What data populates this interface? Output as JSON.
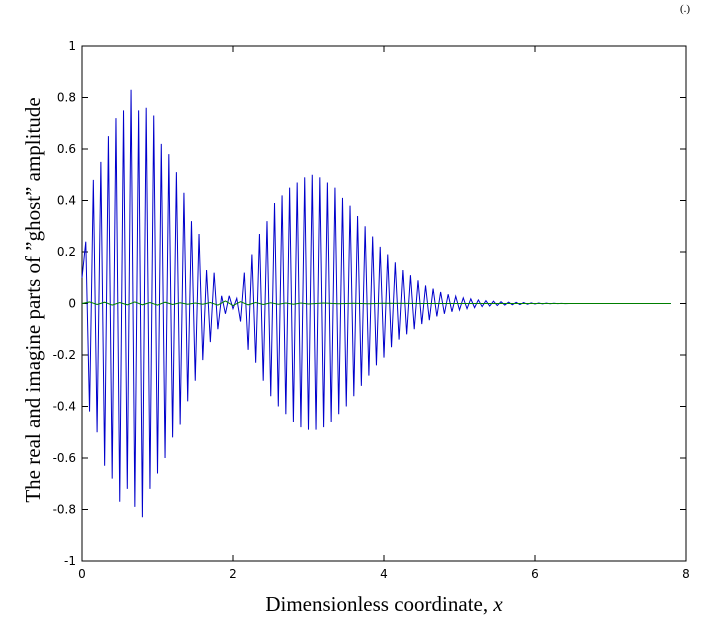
{
  "corner_mark": "(.)",
  "chart_data": {
    "type": "line",
    "title": "",
    "xlabel": "Dimensionless coordinate,",
    "xlabel_var": "x",
    "ylabel": "The real and imagine parts of ”ghost” amplitude",
    "xlim": [
      0,
      8
    ],
    "ylim": [
      -1,
      1
    ],
    "xticks": [
      "0",
      "2",
      "4",
      "6",
      "8"
    ],
    "yticks": [
      "-1",
      "-0.8",
      "-0.6",
      "-0.4",
      "-0.2",
      "0",
      "0.2",
      "0.4",
      "0.6",
      "0.8",
      "1"
    ],
    "grid": false,
    "colors": {
      "real": "#0000cc",
      "imag": "#007f00"
    },
    "series": [
      {
        "key": "real",
        "x": [
          0.0,
          0.05,
          0.1,
          0.15,
          0.2,
          0.25,
          0.3,
          0.35,
          0.4,
          0.45,
          0.5,
          0.55,
          0.6,
          0.65,
          0.7,
          0.75,
          0.8,
          0.85,
          0.9,
          0.95,
          1.0,
          1.05,
          1.1,
          1.15,
          1.2,
          1.25,
          1.3,
          1.35,
          1.4,
          1.45,
          1.5,
          1.55,
          1.6,
          1.65,
          1.7,
          1.75,
          1.8,
          1.85,
          1.9,
          1.95,
          2.0,
          2.05,
          2.1,
          2.15,
          2.2,
          2.25,
          2.3,
          2.35,
          2.4,
          2.45,
          2.5,
          2.55,
          2.6,
          2.65,
          2.7,
          2.75,
          2.8,
          2.85,
          2.9,
          2.95,
          3.0,
          3.05,
          3.1,
          3.15,
          3.2,
          3.25,
          3.3,
          3.35,
          3.4,
          3.45,
          3.5,
          3.55,
          3.6,
          3.65,
          3.7,
          3.75,
          3.8,
          3.85,
          3.9,
          3.95,
          4.0,
          4.05,
          4.1,
          4.15,
          4.2,
          4.25,
          4.3,
          4.35,
          4.4,
          4.45,
          4.5,
          4.55,
          4.6,
          4.65,
          4.7,
          4.75,
          4.8,
          4.85,
          4.9,
          4.95,
          5.0,
          5.05,
          5.1,
          5.15,
          5.2,
          5.25,
          5.3,
          5.35,
          5.4,
          5.45,
          5.5,
          5.55,
          5.6,
          5.65,
          5.7,
          5.75,
          5.8,
          5.85,
          5.9,
          5.95,
          6.0,
          6.05,
          6.1,
          6.15,
          6.2,
          6.25,
          6.3,
          6.35,
          6.4,
          6.45,
          6.5,
          6.55,
          7.8
        ],
        "y": [
          0.1,
          0.24,
          -0.42,
          0.48,
          -0.5,
          0.55,
          -0.63,
          0.65,
          -0.68,
          0.72,
          -0.77,
          0.75,
          -0.72,
          0.83,
          -0.79,
          0.75,
          -0.83,
          0.76,
          -0.72,
          0.73,
          -0.66,
          0.62,
          -0.6,
          0.58,
          -0.52,
          0.51,
          -0.47,
          0.43,
          -0.38,
          0.32,
          -0.3,
          0.27,
          -0.22,
          0.13,
          -0.15,
          0.12,
          -0.1,
          0.03,
          -0.04,
          0.03,
          -0.02,
          0.02,
          -0.07,
          0.12,
          -0.18,
          0.19,
          -0.23,
          0.27,
          -0.3,
          0.32,
          -0.36,
          0.39,
          -0.4,
          0.42,
          -0.43,
          0.45,
          -0.46,
          0.47,
          -0.48,
          0.49,
          -0.49,
          0.5,
          -0.49,
          0.49,
          -0.48,
          0.47,
          -0.46,
          0.45,
          -0.43,
          0.41,
          -0.4,
          0.38,
          -0.36,
          0.34,
          -0.32,
          0.3,
          -0.28,
          0.26,
          -0.24,
          0.22,
          -0.21,
          0.19,
          -0.17,
          0.16,
          -0.14,
          0.13,
          -0.12,
          0.11,
          -0.1,
          0.09,
          -0.08,
          0.07,
          -0.065,
          0.058,
          -0.05,
          0.045,
          -0.04,
          0.036,
          -0.032,
          0.028,
          -0.025,
          0.022,
          -0.02,
          0.018,
          -0.016,
          0.014,
          -0.012,
          0.011,
          -0.01,
          0.009,
          -0.008,
          0.007,
          -0.006,
          0.0055,
          -0.005,
          0.0045,
          -0.004,
          0.0035,
          -0.003,
          0.0025,
          -0.002,
          0.002,
          -0.0015,
          0.0012,
          -0.001,
          0.0008,
          -0.0006,
          0.0005,
          -0.0003,
          0.0002,
          0.0,
          0.0,
          0.0
        ]
      },
      {
        "key": "imag",
        "x": [
          0.0,
          0.1,
          0.2,
          0.3,
          0.4,
          0.5,
          0.6,
          0.7,
          0.8,
          0.9,
          1.0,
          1.1,
          1.2,
          1.3,
          1.4,
          1.5,
          1.6,
          1.7,
          1.8,
          1.9,
          2.0,
          2.1,
          2.2,
          2.3,
          2.4,
          2.5,
          2.6,
          2.7,
          2.8,
          2.9,
          3.0,
          3.2,
          3.4,
          3.6,
          3.8,
          4.0,
          4.5,
          5.0,
          5.5,
          6.0,
          6.5,
          7.8
        ],
        "y": [
          0.0,
          0.006,
          -0.004,
          0.005,
          -0.006,
          0.004,
          -0.005,
          0.006,
          -0.005,
          0.004,
          -0.006,
          0.005,
          -0.004,
          0.003,
          -0.003,
          0.002,
          -0.003,
          0.004,
          -0.006,
          0.01,
          -0.008,
          0.007,
          -0.005,
          0.004,
          -0.004,
          0.003,
          -0.003,
          0.002,
          -0.003,
          0.002,
          -0.002,
          0.002,
          -0.001,
          0.001,
          -0.001,
          0.001,
          0.0,
          0.0,
          0.0,
          0.0,
          0.0,
          0.0
        ]
      }
    ]
  }
}
